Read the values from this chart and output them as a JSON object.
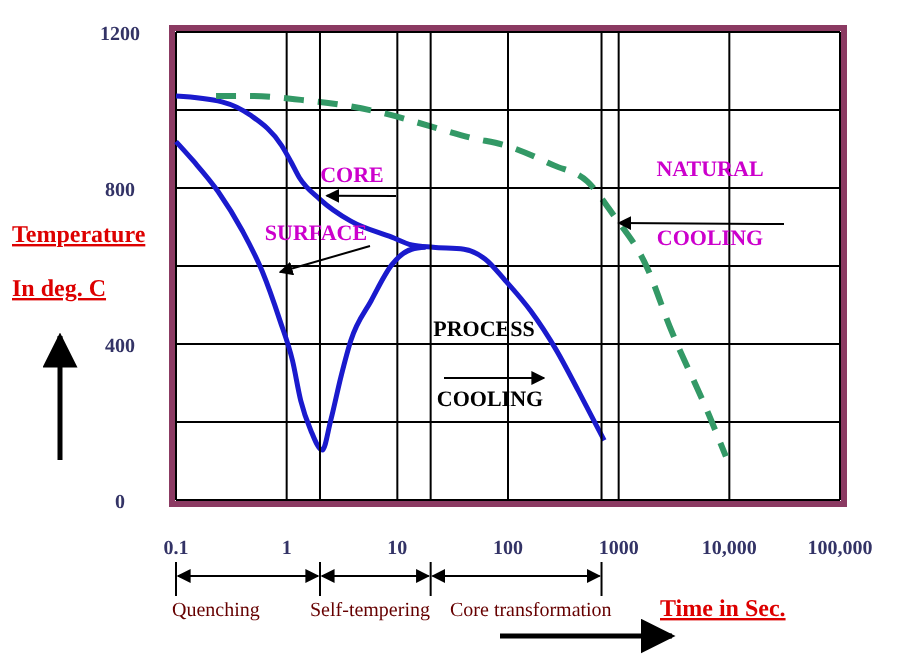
{
  "chart_data": {
    "type": "line",
    "xlabel": "Time in Sec.",
    "ylabel": "Temperature In deg. C",
    "log": "x",
    "grid": true,
    "xlim": [
      0.1,
      100000
    ],
    "xticks": [
      0.1,
      1,
      10,
      100,
      1000,
      {
        "value": 10000,
        "label": "10,000"
      },
      {
        "value": 100000,
        "label": "100,000"
      }
    ],
    "ylim": [
      0,
      1200
    ],
    "yticks": [
      0,
      {
        "value": 200,
        "label": null
      },
      400,
      {
        "value": 600,
        "label": null
      },
      800,
      {
        "value": 1000,
        "label": null
      },
      1200
    ],
    "series": [
      {
        "color": "#1a1acd",
        "line_style": "solid",
        "x": [
          0.1,
          0.26,
          0.48,
          0.9,
          1.09,
          1.3,
          2.0,
          3.8,
          8.9,
          13.5,
          21,
          40,
          62,
          95,
          160,
          275,
          430,
          740
        ],
        "values": [
          1036,
          1021,
          985,
          909,
          868,
          827,
          771,
          715,
          674,
          654,
          648,
          643,
          618,
          562,
          485,
          383,
          281,
          153
        ]
      },
      {
        "color": "#1a1acd",
        "line_style": "solid",
        "x": [
          0.1,
          0.145,
          0.24,
          0.4,
          0.6,
          0.87,
          1.13,
          1.34,
          1.65,
          2.1,
          2.5,
          3.1,
          3.8,
          5.8,
          8.9,
          13.5,
          18
        ],
        "values": [
          919,
          868,
          791,
          689,
          587,
          460,
          357,
          255,
          179,
          128,
          204,
          317,
          409,
          511,
          603,
          643,
          648
        ]
      },
      {
        "color": "#339966",
        "line_style": "dashed",
        "x": [
          0.23,
          0.45,
          1.35,
          3.5,
          8,
          19,
          46,
          95,
          260,
          520,
          900,
          1800,
          2900,
          6500,
          9300
        ],
        "values": [
          1036,
          1036,
          1026,
          1011,
          990,
          960,
          929,
          909,
          858,
          817,
          730,
          597,
          444,
          220,
          112
        ]
      }
    ],
    "ref_lines": [
      {
        "axis": "x",
        "value": 2,
        "color": "#000000"
      },
      {
        "axis": "x",
        "value": 20,
        "color": "#000000"
      },
      {
        "axis": "x",
        "value": 700,
        "color": "#000000"
      }
    ],
    "annotations": [
      {
        "text": "CORE",
        "x": 2.3,
        "y": 780
      },
      "SURFACE",
      "NATURAL",
      {
        "text": "COOLING",
        "x": 1000,
        "y": 710
      },
      "PROCESS",
      "COOLING",
      "Quenching",
      "Self-tempering",
      "Core transformation"
    ]
  }
}
